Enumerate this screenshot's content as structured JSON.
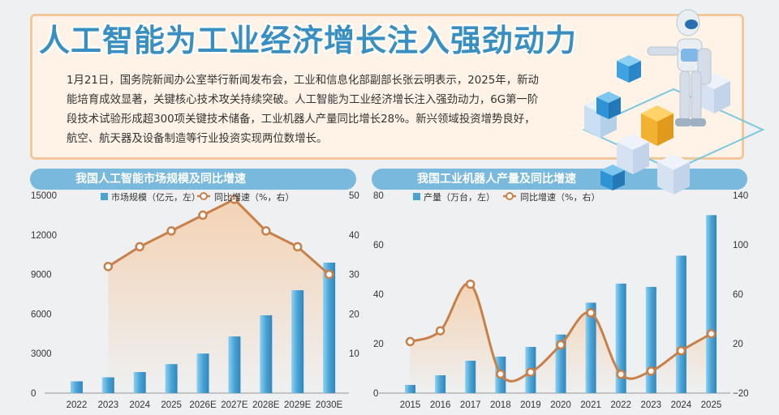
{
  "header": {
    "title": "人工智能为工业经济增长注入强劲动力",
    "paragraph": "1月21日，国务院新闻办公室举行新闻发布会，工业和信息化部副部长张云明表示，2025年，新动能培育成效显著，关键核心技术攻关持续突破。人工智能为工业经济增长注入强劲动力，6G第一阶段技术试验形成超300项关键技术储备，工业机器人产量同比增长28%。新兴领域投资增势良好，航空、航天器及设备制造等行业投资实现两位数增长。"
  },
  "colors": {
    "bar": "#4aa3d3",
    "line": "#c8804a",
    "title_blue": "#3a8fc2",
    "panel": "#79b9dd"
  },
  "chart_data": [
    {
      "type": "bar+line",
      "title": "我国人工智能市场规模及同比增速",
      "categories": [
        "2022",
        "2023",
        "2024",
        "2025",
        "2026E",
        "2027E",
        "2028E",
        "2029E",
        "2030E"
      ],
      "left_axis": {
        "min": 0,
        "max": 15000,
        "ticks": [
          0,
          3000,
          6000,
          9000,
          12000,
          15000
        ]
      },
      "right_axis": {
        "min": 0,
        "max": 50,
        "ticks": [
          10,
          20,
          30,
          40,
          50
        ]
      },
      "series": [
        {
          "name": "市场规模（亿元，左）",
          "kind": "bar",
          "axis": "left",
          "values": [
            900,
            1200,
            1600,
            2200,
            3000,
            4300,
            5900,
            7800,
            9900
          ]
        },
        {
          "name": "同比增速（%，右）",
          "kind": "line",
          "axis": "right",
          "values": [
            null,
            32,
            37,
            41,
            45,
            49,
            41,
            37,
            30
          ]
        }
      ]
    },
    {
      "type": "bar+line",
      "title": "我国工业机器人产量及同比增速",
      "categories": [
        "2015",
        "2016",
        "2017",
        "2018",
        "2019",
        "2020",
        "2021",
        "2022",
        "2023",
        "2024",
        "2025"
      ],
      "left_axis": {
        "min": 0,
        "max": 80,
        "ticks": [
          0,
          20,
          40,
          60,
          80
        ]
      },
      "right_axis": {
        "min": -20,
        "max": 140,
        "ticks": [
          -20,
          20,
          60,
          100,
          140
        ]
      },
      "series": [
        {
          "name": "产量（万台，左）",
          "kind": "bar",
          "axis": "left",
          "values": [
            3.3,
            7.2,
            13.1,
            14.8,
            18.7,
            23.7,
            36.6,
            44.3,
            43.0,
            55.6,
            72.0
          ]
        },
        {
          "name": "同比增速（%，右）",
          "kind": "line",
          "axis": "right",
          "values": [
            21.7,
            30.4,
            68.1,
            -4.6,
            -3.1,
            19.1,
            44.9,
            -4.8,
            -2.2,
            14.2,
            28.0
          ]
        }
      ]
    }
  ]
}
